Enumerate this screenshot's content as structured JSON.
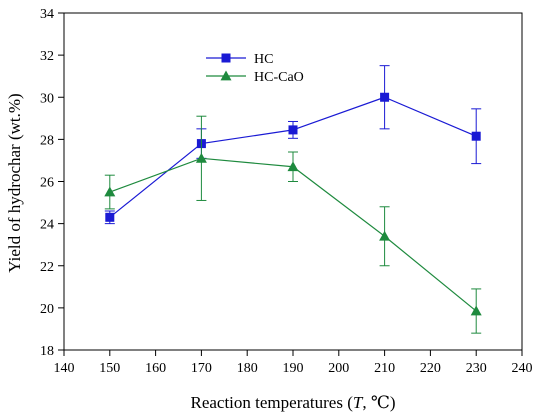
{
  "chart_data": {
    "type": "line",
    "xlabel": "Reaction temperatures (",
    "xlabel_italic": "T",
    "xlabel_suffix": ", ℃)",
    "ylabel": "Yield of hydrochar (wt.%)",
    "xlim": [
      140,
      240
    ],
    "ylim": [
      18,
      34
    ],
    "xticks": [
      140,
      150,
      160,
      170,
      180,
      190,
      200,
      210,
      220,
      230,
      240
    ],
    "yticks": [
      18,
      20,
      22,
      24,
      26,
      28,
      30,
      32,
      34
    ],
    "legend_position": "top-center",
    "series": [
      {
        "name": "HC",
        "color": "#1a1ad4",
        "marker": "square",
        "x": [
          150,
          170,
          190,
          210,
          230
        ],
        "y": [
          24.3,
          27.8,
          28.45,
          30.0,
          28.15
        ],
        "err": [
          0.3,
          0.7,
          0.4,
          1.5,
          1.3
        ]
      },
      {
        "name": "HC-CaO",
        "color": "#1e8a3e",
        "marker": "triangle",
        "x": [
          150,
          170,
          190,
          210,
          230
        ],
        "y": [
          25.5,
          27.1,
          26.7,
          23.4,
          19.85
        ],
        "err": [
          0.8,
          2.0,
          0.7,
          1.4,
          1.05
        ]
      }
    ]
  }
}
